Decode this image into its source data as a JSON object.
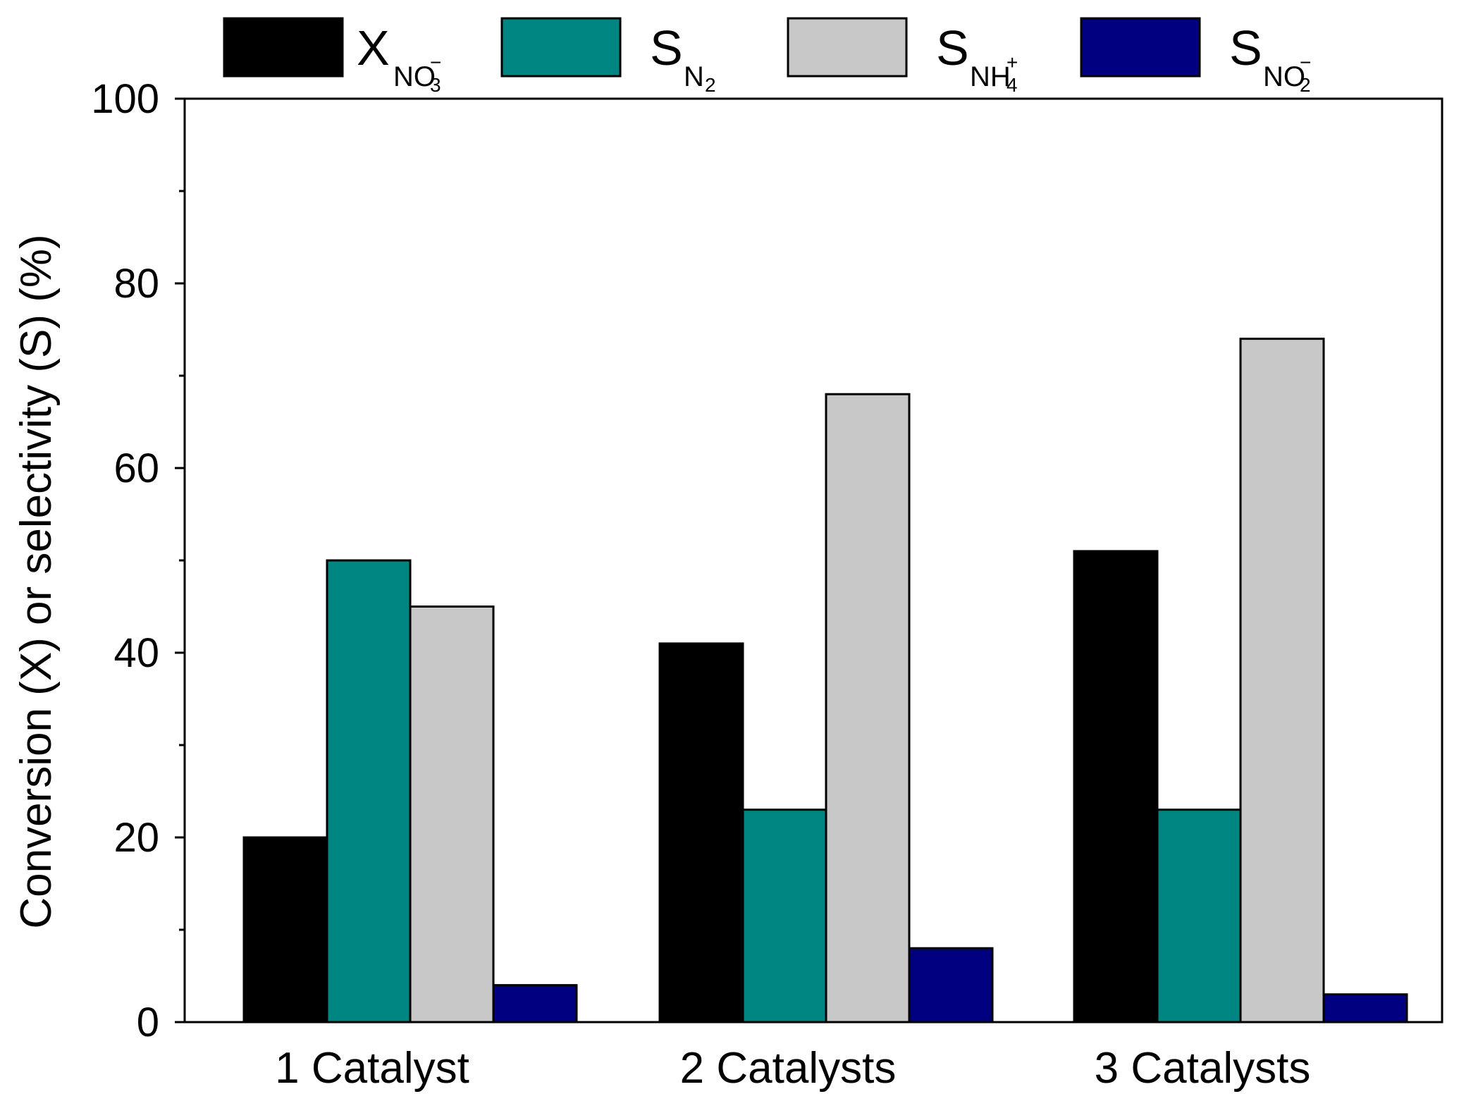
{
  "chart_data": {
    "type": "bar",
    "title": "",
    "xlabel": "",
    "ylabel": "Conversion (X) or selectivity (S) (%)",
    "ylim": [
      0,
      100
    ],
    "yticks": [
      "0",
      "20",
      "40",
      "60",
      "80",
      "100"
    ],
    "categories": [
      "1 Catalyst",
      "2 Catalysts",
      "3 Catalysts"
    ],
    "series": [
      {
        "name": "X_NO3-",
        "color": "#000000",
        "values": [
          20,
          41,
          51
        ]
      },
      {
        "name": "S_N2",
        "color": "#008682",
        "values": [
          50,
          23,
          23
        ]
      },
      {
        "name": "S_NH4+",
        "color": "#c8c8c8",
        "values": [
          45,
          68,
          74
        ]
      },
      {
        "name": "S_NO2-",
        "color": "#000080",
        "values": [
          4,
          8,
          3
        ]
      }
    ],
    "legend_placement": "top",
    "legend": [
      {
        "main": "X",
        "sub": "NO",
        "subsub": "3",
        "sup": "−"
      },
      {
        "main": "S",
        "sub": "N",
        "subsub": "2",
        "sup": ""
      },
      {
        "main": "S",
        "sub": "NH",
        "subsub": "4",
        "sup": "+"
      },
      {
        "main": "S",
        "sub": "NO",
        "subsub": "2",
        "sup": "−"
      }
    ]
  }
}
